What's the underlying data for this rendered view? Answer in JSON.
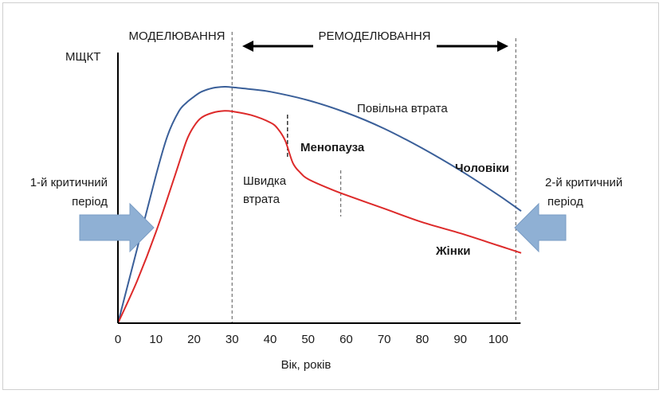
{
  "chart_data": {
    "type": "line",
    "title": "",
    "ylabel": "МЩКТ",
    "xlabel": "Вік, років",
    "xlim": [
      0,
      105
    ],
    "xticks": [
      0,
      10,
      20,
      30,
      40,
      50,
      60,
      70,
      80,
      90,
      100
    ],
    "ylim": [
      0,
      100
    ],
    "grid": false,
    "series": [
      {
        "name": "Чоловіки",
        "color": "#3a5f99",
        "x": [
          0,
          5,
          10,
          13,
          16,
          18,
          20,
          22,
          25,
          28,
          30,
          35,
          40,
          50,
          60,
          70,
          80,
          90,
          100,
          106
        ],
        "y": [
          0,
          30,
          60,
          76,
          86,
          89.5,
          92,
          94,
          95.5,
          96,
          95.8,
          95,
          94,
          90.5,
          85.5,
          79,
          71,
          62,
          52,
          45.5
        ]
      },
      {
        "name": "Жінки",
        "color": "#dd2a2a",
        "x": [
          0,
          5,
          10,
          15,
          18,
          20,
          22,
          25,
          28,
          30,
          35,
          40,
          42,
          44,
          46,
          48,
          50,
          55,
          60,
          70,
          80,
          90,
          100,
          106
        ],
        "y": [
          0,
          17,
          37,
          60,
          74,
          80,
          83.5,
          85.5,
          86.2,
          86,
          84.5,
          81.5,
          79,
          74,
          65,
          61,
          58.5,
          55,
          52,
          46.5,
          41,
          36.5,
          31.5,
          28.5
        ]
      }
    ],
    "phases": {
      "modeling": "МОДЕЛЮВАННЯ",
      "remodeling": "РЕМОДЕЛЮВАННЯ",
      "boundary_age": 30,
      "end_age": 105
    },
    "annotations": {
      "slow_loss": "Повільна втрата",
      "menopause": "Менопауза",
      "fast_loss_line1": "Швидка",
      "fast_loss_line2": "втрата",
      "men_label": "Чоловіки",
      "women_label": "Жінки",
      "first_critical_line1": "1-й критичний",
      "first_critical_line2": "період",
      "second_critical_line1": "2-й критичний",
      "second_critical_line2": "період",
      "marker_ages": [
        45,
        59
      ]
    },
    "colors": {
      "arrow_fill": "#8fb0d4",
      "arrow_stroke": "#7a9cc4",
      "axis": "#000000",
      "dash": "#555555"
    }
  }
}
